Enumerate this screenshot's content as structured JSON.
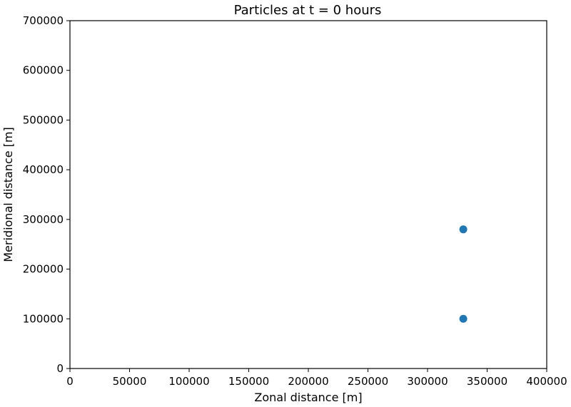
{
  "chart_data": {
    "type": "scatter",
    "title": "Particles at t = 0 hours",
    "xlabel": "Zonal distance [m]",
    "ylabel": "Meridional distance [m]",
    "xlim": [
      0,
      400000
    ],
    "ylim": [
      0,
      700000
    ],
    "xticks": [
      "0",
      "50000",
      "100000",
      "150000",
      "200000",
      "250000",
      "300000",
      "350000",
      "400000"
    ],
    "yticks": [
      "0",
      "100000",
      "200000",
      "300000",
      "400000",
      "500000",
      "600000",
      "700000"
    ],
    "grid": false,
    "series": [
      {
        "color": "#1f77b4",
        "points": [
          {
            "x": 330000,
            "y": 280000
          },
          {
            "x": 330000,
            "y": 100000
          }
        ]
      }
    ]
  }
}
